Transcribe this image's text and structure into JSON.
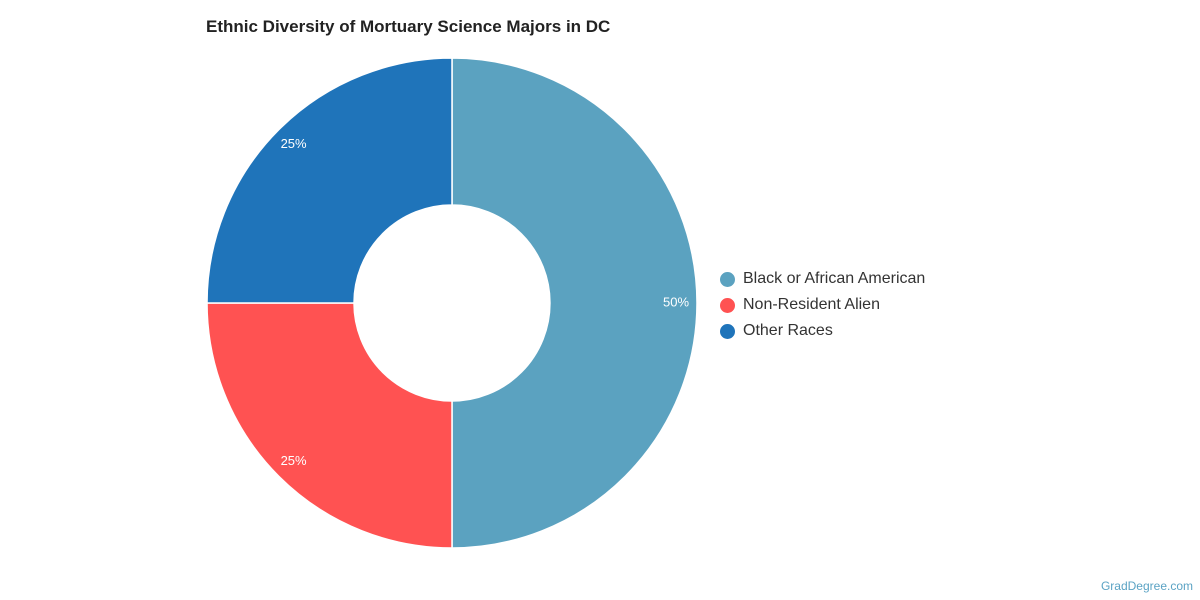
{
  "chart_data": {
    "type": "pie",
    "title": "Ethnic Diversity of Mortuary Science Majors in DC",
    "categories": [
      "Black or African American",
      "Non-Resident Alien",
      "Other Races"
    ],
    "values": [
      50,
      25,
      25
    ],
    "labels": [
      "50%",
      "25%",
      "25%"
    ],
    "colors": [
      "#5ba2c0",
      "#ff5252",
      "#1f74ba"
    ],
    "legend_position": "right"
  },
  "credit": "GradDegree.com"
}
